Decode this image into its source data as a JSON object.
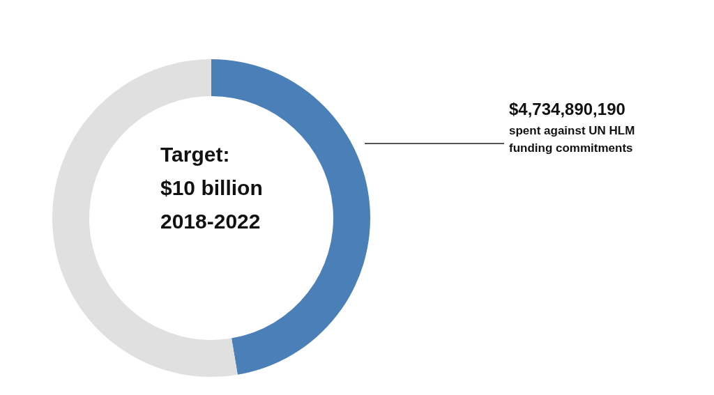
{
  "chart_data": {
    "type": "donut",
    "categories": [
      "spent against UN HLM funding commitments",
      null
    ],
    "values": [
      4734890190,
      5265109810
    ],
    "value_labels": [
      "$4,734,890,190",
      null
    ],
    "colors": [
      "#4a7fb8",
      "#e0e0e0"
    ],
    "annotations": [
      "Target:",
      "$10 billion",
      "2018-2022"
    ],
    "legend": false
  }
}
